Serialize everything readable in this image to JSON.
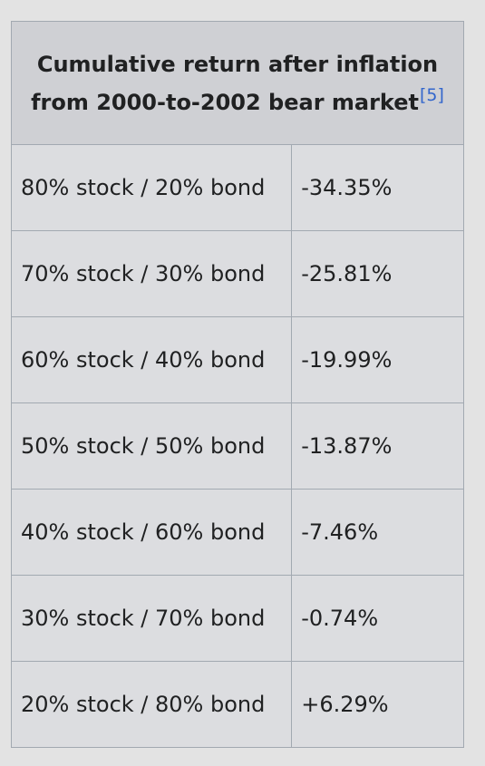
{
  "table": {
    "header": {
      "title": "Cumulative return after inflation from 2000-to-2002 bear market",
      "citation": "[5]"
    },
    "rows": [
      {
        "allocation": "80% stock / 20% bond",
        "return": "-34.35%"
      },
      {
        "allocation": "70% stock / 30% bond",
        "return": "-25.81%"
      },
      {
        "allocation": "60% stock / 40% bond",
        "return": "-19.99%"
      },
      {
        "allocation": "50% stock / 50% bond",
        "return": "-13.87%"
      },
      {
        "allocation": "40% stock / 60% bond",
        "return": "-7.46%"
      },
      {
        "allocation": "30% stock / 70% bond",
        "return": "-0.74%"
      },
      {
        "allocation": "20% stock / 80% bond",
        "return": "+6.29%"
      }
    ]
  }
}
